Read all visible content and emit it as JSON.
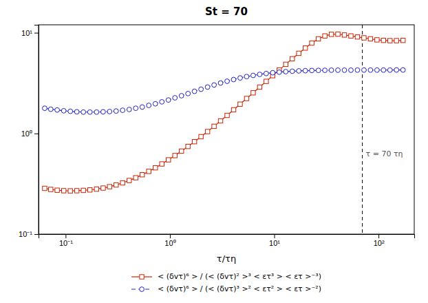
{
  "chart_data": {
    "type": "line",
    "title": "St = 70",
    "xlabel": "τ/τη",
    "log": true,
    "grid": false,
    "legend": "bottom",
    "xlim": [
      0.055,
      220
    ],
    "ylim": [
      0.1,
      12
    ],
    "xticks": [
      {
        "value": 0.1,
        "label": "10⁻¹"
      },
      {
        "value": 1,
        "label": "10⁰"
      },
      {
        "value": 10,
        "label": "10¹"
      },
      {
        "value": 100,
        "label": "10²"
      }
    ],
    "yticks": [
      {
        "value": 0.1,
        "label": "10⁻¹"
      },
      {
        "value": 1,
        "label": "10⁰"
      },
      {
        "value": 10,
        "label": "10¹"
      }
    ],
    "vlines": [
      {
        "x": 70,
        "label": "τ = 70 τη"
      }
    ],
    "series": [
      {
        "name": "< (δvτ)⁶ > / (< (δvτ)² >³ < ετ³ > < ετ >⁻³)",
        "color": "#cc2200",
        "marker": "square",
        "line_style": "solid",
        "x": [
          0.063,
          0.072,
          0.083,
          0.096,
          0.111,
          0.128,
          0.148,
          0.171,
          0.198,
          0.229,
          0.264,
          0.305,
          0.352,
          0.407,
          0.47,
          0.543,
          0.627,
          0.725,
          0.837,
          0.967,
          1.117,
          1.29,
          1.49,
          1.72,
          1.987,
          2.295,
          2.65,
          3.06,
          3.534,
          4.081,
          4.712,
          5.44,
          6.282,
          7.255,
          8.377,
          9.676,
          11.17,
          12.9,
          14.9,
          17.2,
          19.86,
          22.94,
          26.49,
          30.59,
          35.32,
          40.78,
          47.09,
          54.37,
          62.77,
          72.49,
          83.71,
          96.65,
          111.6,
          128.8,
          148.7,
          171.7
        ],
        "values": [
          0.285,
          0.278,
          0.273,
          0.27,
          0.269,
          0.27,
          0.272,
          0.275,
          0.28,
          0.287,
          0.296,
          0.308,
          0.323,
          0.341,
          0.363,
          0.389,
          0.42,
          0.456,
          0.498,
          0.547,
          0.603,
          0.668,
          0.743,
          0.829,
          0.929,
          1.044,
          1.178,
          1.333,
          1.512,
          1.718,
          1.954,
          2.224,
          2.533,
          2.886,
          3.29,
          3.75,
          4.271,
          4.86,
          5.52,
          6.25,
          7.05,
          7.9,
          8.7,
          9.3,
          9.65,
          9.7,
          9.5,
          9.3,
          9.1,
          8.9,
          8.7,
          8.5,
          8.4,
          8.35,
          8.35,
          8.4
        ]
      },
      {
        "name": "< (δvτ)⁶ > / (< (δvτ)³ >² < ετ² > < ετ >⁻²)",
        "color": "#2222cc",
        "marker": "circle",
        "line_style": "dashed",
        "x": [
          0.063,
          0.072,
          0.083,
          0.096,
          0.111,
          0.128,
          0.148,
          0.171,
          0.198,
          0.229,
          0.264,
          0.305,
          0.352,
          0.407,
          0.47,
          0.543,
          0.627,
          0.725,
          0.837,
          0.967,
          1.117,
          1.29,
          1.49,
          1.72,
          1.987,
          2.295,
          2.65,
          3.06,
          3.534,
          4.081,
          4.712,
          5.44,
          6.282,
          7.255,
          8.377,
          9.676,
          11.17,
          12.9,
          14.9,
          17.2,
          19.86,
          22.94,
          26.49,
          30.59,
          35.32,
          40.78,
          47.09,
          54.37,
          62.77,
          72.49,
          83.71,
          96.65,
          111.6,
          128.8,
          148.7,
          171.7
        ],
        "values": [
          1.78,
          1.74,
          1.71,
          1.68,
          1.66,
          1.64,
          1.63,
          1.63,
          1.63,
          1.64,
          1.65,
          1.67,
          1.7,
          1.73,
          1.78,
          1.83,
          1.9,
          1.97,
          2.06,
          2.15,
          2.26,
          2.37,
          2.49,
          2.62,
          2.75,
          2.89,
          3.03,
          3.17,
          3.3,
          3.43,
          3.56,
          3.67,
          3.77,
          3.86,
          3.94,
          4.01,
          4.06,
          4.11,
          4.15,
          4.18,
          4.2,
          4.22,
          4.23,
          4.24,
          4.25,
          4.25,
          4.25,
          4.25,
          4.26,
          4.26,
          4.26,
          4.26,
          4.26,
          4.26,
          4.27,
          4.27
        ]
      }
    ]
  }
}
